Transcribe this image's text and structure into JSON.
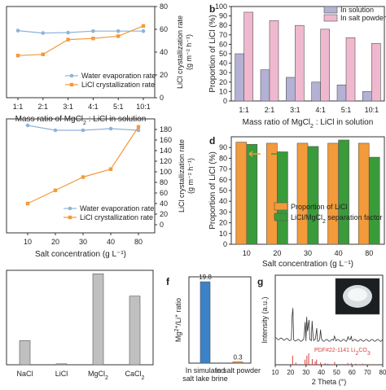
{
  "chart_data": [
    {
      "panel_label": "",
      "type": "line",
      "categories": [
        "1:1",
        "2:1",
        "3:1",
        "4:1",
        "5:1",
        "10:1"
      ],
      "xlabel_main": "Mass ratio of MgCl",
      "xlabel_sub": "2",
      "xlabel_tail": " : LiCl in solution",
      "y2label_main": "LiCl crystallization rate",
      "y2label_unit": "(g m⁻² h⁻¹)",
      "y2lim": [
        0,
        80
      ],
      "y2ticks": [
        "0",
        "20",
        "40",
        "60",
        "80"
      ],
      "series": [
        {
          "name": "Water evaporation rate",
          "color": "#8fb3d9",
          "marker": "circle",
          "axis": "left",
          "values": [
            1.0,
            0.95,
            0.96,
            0.99,
            0.99,
            0.99
          ]
        },
        {
          "name": "LiCl crystallization rate",
          "color": "#f39a3a",
          "marker": "square",
          "axis": "right",
          "values": [
            37,
            38,
            51,
            52,
            54,
            63
          ]
        }
      ],
      "legend_position": "bottom-right"
    },
    {
      "panel_label": "b",
      "type": "bar",
      "categories": [
        "1:1",
        "2:1",
        "3:1",
        "4:1",
        "5:1",
        "10:1"
      ],
      "xlabel_main": "Mass ratio of MgCl",
      "xlabel_sub": "2",
      "xlabel_tail": " : LiCl in solution",
      "ylabel": "Proportion of LiCl (%)",
      "ylim": [
        0,
        100
      ],
      "yticks": [
        "0",
        "10",
        "20",
        "30",
        "40",
        "50",
        "60",
        "70",
        "80",
        "90",
        "100"
      ],
      "series": [
        {
          "name": "In solution",
          "color": "#b3b1d4",
          "values": [
            50,
            33,
            25,
            20,
            17,
            10
          ]
        },
        {
          "name": "In salt powder",
          "color": "#f0b8ce",
          "values": [
            94,
            85,
            80,
            76,
            67,
            61
          ]
        }
      ],
      "legend_position": "top-right"
    },
    {
      "panel_label": "",
      "type": "line",
      "categories": [
        "10",
        "20",
        "30",
        "40",
        "80"
      ],
      "xlabel": "Salt concentration  (g L⁻¹)",
      "y2label_main": "LiCl crystallization rate",
      "y2label_unit": "(g m⁻² h⁻¹)",
      "y2lim": [
        0,
        200
      ],
      "y2ticks": [
        "0",
        "20",
        "40",
        "60",
        "80",
        "100",
        "120",
        "140",
        "160",
        "180"
      ],
      "series": [
        {
          "name": "Water evaporation rate",
          "color": "#8fb3d9",
          "marker": "circle",
          "axis": "left",
          "values": [
            1.0,
            0.97,
            0.97,
            0.98,
            0.97
          ]
        },
        {
          "name": "LiCl crystallization rate",
          "color": "#f39a3a",
          "marker": "square",
          "axis": "right",
          "values": [
            40,
            65,
            90,
            105,
            185
          ]
        }
      ],
      "legend_position": "bottom-right"
    },
    {
      "panel_label": "d",
      "type": "bar",
      "categories": [
        "10",
        "20",
        "30",
        "40",
        "80"
      ],
      "xlabel": "Salt concentration  (g L⁻¹)",
      "ylabel": "Proportion of LiCl (%)",
      "ylim": [
        0,
        100
      ],
      "yticks": [
        "0",
        "10",
        "20",
        "30",
        "40",
        "50",
        "60",
        "70",
        "80",
        "90"
      ],
      "series": [
        {
          "name": "Proportion of LiCl",
          "color": "#f39a3a",
          "values": [
            95,
            94,
            94,
            94,
            94
          ]
        },
        {
          "name_main": "LiCl/MgCl",
          "name_sub": "2",
          "name_tail": " separation factor",
          "color": "#3a9b3a",
          "values": [
            93,
            86,
            91,
            97,
            81
          ]
        }
      ],
      "legend_position": "bottom-right"
    },
    {
      "panel_label": "",
      "type": "bar",
      "categories": [
        "NaCl",
        "LiCl",
        "MgCl2",
        "CaCl2"
      ],
      "category_display": [
        {
          "main": "NaCl",
          "sub": ""
        },
        {
          "main": "LiCl",
          "sub": ""
        },
        {
          "main": "MgCl",
          "sub": "2"
        },
        {
          "main": "CaCl",
          "sub": "2"
        }
      ],
      "ylim": [
        0,
        1
      ],
      "values": [
        0.26,
        0.01,
        0.98,
        0.74
      ],
      "color": "#c0c0c0"
    },
    {
      "panel_label": "f",
      "type": "bar",
      "categories": [
        "In simulated salt lake brine",
        "In salt powder"
      ],
      "category_lines": [
        [
          "In simulated",
          "salt lake brine"
        ],
        [
          "In salt powder"
        ]
      ],
      "ylabel_main": "Mg",
      "ylabel_sup1": "2+",
      "ylabel_mid": "/Li",
      "ylabel_sup2": "+",
      "ylabel_tail": " ratio",
      "ylim": [
        0,
        21
      ],
      "values": [
        19.8,
        0.3
      ],
      "value_labels": [
        "19.8",
        "0.3"
      ],
      "colors": [
        "#3b82c8",
        "#f39a3a"
      ]
    },
    {
      "panel_label": "g",
      "type": "line",
      "xlabel": "2 Theta (°)",
      "ylabel": "Intensity (a.u.)",
      "xlim": [
        10,
        80
      ],
      "xticks": [
        "10",
        "20",
        "30",
        "40",
        "50",
        "60",
        "70",
        "80"
      ],
      "reference_label_main": "PDF#22-1141 Li",
      "reference_label_sub1": "2",
      "reference_label_mid": "CO",
      "reference_label_sub2": "3",
      "reference_color": "#d94040",
      "peaks": [
        [
          21.3,
          0.95
        ],
        [
          29.4,
          0.45
        ],
        [
          30.6,
          0.6
        ],
        [
          31.8,
          0.6
        ],
        [
          34.1,
          0.5
        ],
        [
          36.9,
          0.3
        ],
        [
          39.5,
          0.2
        ],
        [
          48.7,
          0.15
        ],
        [
          57.3,
          0.1
        ],
        [
          59.5,
          0.1
        ]
      ],
      "reference_sticks": [
        [
          21.3,
          0.8
        ],
        [
          23.4,
          0.2
        ],
        [
          29.4,
          0.45
        ],
        [
          30.6,
          0.8
        ],
        [
          31.8,
          1.0
        ],
        [
          34.1,
          0.5
        ],
        [
          36.0,
          0.3
        ],
        [
          36.9,
          0.45
        ],
        [
          39.5,
          0.2
        ],
        [
          42.5,
          0.15
        ],
        [
          44.3,
          0.1
        ],
        [
          48.7,
          0.25
        ],
        [
          57.3,
          0.15
        ],
        [
          59.5,
          0.15
        ],
        [
          62.6,
          0.1
        ],
        [
          67.0,
          0.1
        ],
        [
          72.0,
          0.05
        ]
      ]
    }
  ]
}
